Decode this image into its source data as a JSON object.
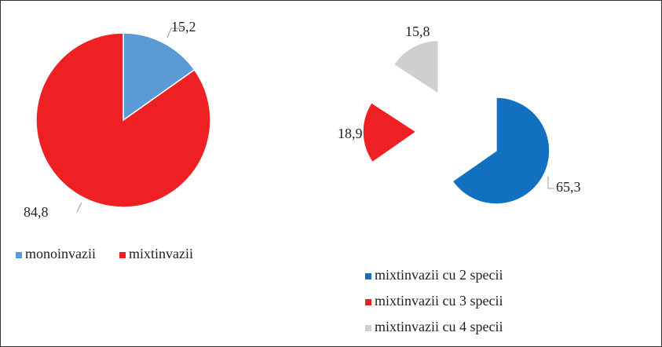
{
  "chart_data": [
    {
      "type": "pie",
      "categories": [
        "monoinvazii",
        "mixtinvazii"
      ],
      "values": [
        15.2,
        84.8
      ],
      "value_labels": [
        "15,2",
        "84,8"
      ],
      "colors": [
        "#5b9bd5",
        "#ee2024"
      ],
      "exploded": false
    },
    {
      "type": "pie",
      "categories": [
        "mixtinvazii cu 2 specii",
        "mixtinvazii cu 3 specii",
        "mixtinvazii cu 4 specii"
      ],
      "values": [
        65.3,
        18.9,
        15.8
      ],
      "value_labels": [
        "65,3",
        "18,9",
        "15,8"
      ],
      "colors": [
        "#1170bf",
        "#ee2024",
        "#d0cfce"
      ],
      "exploded": true
    }
  ]
}
